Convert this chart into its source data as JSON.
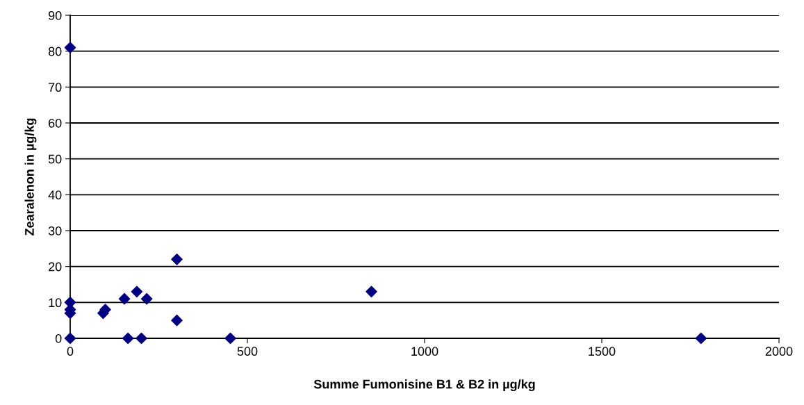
{
  "chart_data": {
    "type": "scatter",
    "xlabel": "Summe Fumonisine B1 & B2 in µg/kg",
    "ylabel": "Zearalenon in µg/kg",
    "marker": "diamond",
    "grid": "y",
    "legend": false,
    "xlim": [
      0,
      2000
    ],
    "xticks": [
      0,
      500,
      1000,
      1500,
      2000
    ],
    "ylim": [
      0,
      90
    ],
    "yticks": [
      0,
      10,
      20,
      30,
      40,
      50,
      60,
      70,
      80,
      90
    ],
    "series": [
      {
        "color": "#000080",
        "x": [
          0,
          0,
          0,
          0,
          0,
          93,
          99,
          153,
          163,
          188,
          201,
          216,
          301,
          301,
          452,
          850,
          1780
        ],
        "values": [
          81,
          10,
          8,
          7,
          0,
          7,
          8,
          11,
          0,
          13,
          0,
          11,
          22,
          5,
          0,
          13,
          0
        ]
      }
    ]
  }
}
